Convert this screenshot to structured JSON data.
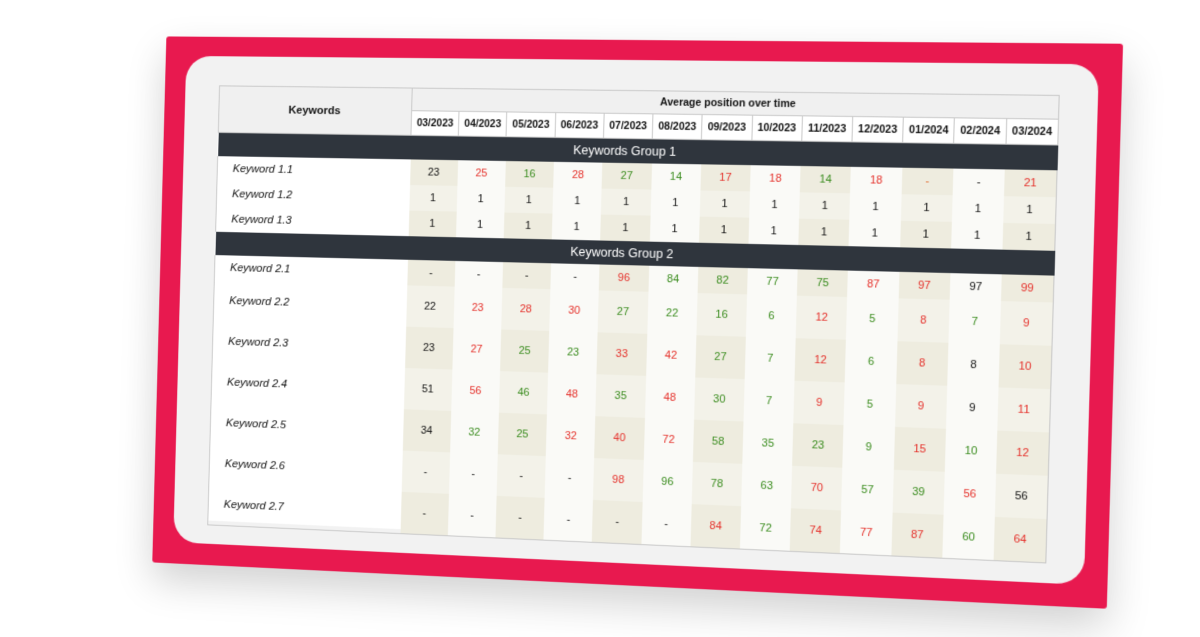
{
  "table": {
    "keywords_header": "Keywords",
    "avg_header": "Average position over time",
    "months": [
      "03/2023",
      "04/2023",
      "05/2023",
      "06/2023",
      "07/2023",
      "08/2023",
      "09/2023",
      "10/2023",
      "11/2023",
      "12/2023",
      "01/2024",
      "02/2024",
      "03/2024"
    ],
    "groups": [
      {
        "name": "Keywords Group 1",
        "rows": [
          {
            "keyword": "Keyword 1.1",
            "values": [
              "23",
              "25",
              "16",
              "28",
              "27",
              "14",
              "17",
              "18",
              "14",
              "18",
              "-",
              "-",
              "21"
            ],
            "colors": [
              "black",
              "red",
              "green",
              "red",
              "green",
              "green",
              "red",
              "red",
              "green",
              "red",
              "orange",
              "black",
              "red"
            ]
          },
          {
            "keyword": "Keyword 1.2",
            "values": [
              "1",
              "1",
              "1",
              "1",
              "1",
              "1",
              "1",
              "1",
              "1",
              "1",
              "1",
              "1",
              "1"
            ],
            "colors": [
              "black",
              "black",
              "black",
              "black",
              "black",
              "black",
              "black",
              "black",
              "black",
              "black",
              "black",
              "black",
              "black"
            ]
          },
          {
            "keyword": "Keyword 1.3",
            "values": [
              "1",
              "1",
              "1",
              "1",
              "1",
              "1",
              "1",
              "1",
              "1",
              "1",
              "1",
              "1",
              "1"
            ],
            "colors": [
              "black",
              "black",
              "black",
              "black",
              "black",
              "black",
              "black",
              "black",
              "black",
              "black",
              "black",
              "black",
              "black"
            ]
          }
        ]
      },
      {
        "name": "Keywords Group 2",
        "rows": [
          {
            "keyword": "Keyword 2.1",
            "values": [
              "-",
              "-",
              "-",
              "-",
              "96",
              "84",
              "82",
              "77",
              "75",
              "87",
              "97",
              "97",
              "99"
            ],
            "colors": [
              "black",
              "black",
              "black",
              "black",
              "red",
              "green",
              "green",
              "green",
              "green",
              "red",
              "red",
              "black",
              "red"
            ]
          },
          {
            "keyword": "Keyword 2.2",
            "values": [
              "22",
              "23",
              "28",
              "30",
              "27",
              "22",
              "16",
              "6",
              "12",
              "5",
              "8",
              "7",
              "9"
            ],
            "colors": [
              "black",
              "red",
              "red",
              "red",
              "green",
              "green",
              "green",
              "green",
              "red",
              "green",
              "red",
              "green",
              "red"
            ]
          },
          {
            "keyword": "Keyword 2.3",
            "values": [
              "23",
              "27",
              "25",
              "23",
              "33",
              "42",
              "27",
              "7",
              "12",
              "6",
              "8",
              "8",
              "10"
            ],
            "colors": [
              "black",
              "red",
              "green",
              "green",
              "red",
              "red",
              "green",
              "green",
              "red",
              "green",
              "red",
              "black",
              "red"
            ]
          },
          {
            "keyword": "Keyword 2.4",
            "values": [
              "51",
              "56",
              "46",
              "48",
              "35",
              "48",
              "30",
              "7",
              "9",
              "5",
              "9",
              "9",
              "11"
            ],
            "colors": [
              "black",
              "red",
              "green",
              "red",
              "green",
              "red",
              "green",
              "green",
              "red",
              "green",
              "red",
              "black",
              "red"
            ]
          },
          {
            "keyword": "Keyword 2.5",
            "values": [
              "34",
              "32",
              "25",
              "32",
              "40",
              "72",
              "58",
              "35",
              "23",
              "9",
              "15",
              "10",
              "12"
            ],
            "colors": [
              "black",
              "green",
              "green",
              "red",
              "red",
              "red",
              "green",
              "green",
              "green",
              "green",
              "red",
              "green",
              "red"
            ]
          },
          {
            "keyword": "Keyword 2.6",
            "values": [
              "-",
              "-",
              "-",
              "-",
              "98",
              "96",
              "78",
              "63",
              "70",
              "57",
              "39",
              "56",
              "56"
            ],
            "colors": [
              "black",
              "black",
              "black",
              "black",
              "red",
              "green",
              "green",
              "green",
              "red",
              "green",
              "green",
              "red",
              "black"
            ]
          },
          {
            "keyword": "Keyword 2.7",
            "values": [
              "-",
              "-",
              "-",
              "-",
              "-",
              "-",
              "84",
              "72",
              "74",
              "77",
              "87",
              "60",
              "64"
            ],
            "colors": [
              "black",
              "black",
              "black",
              "black",
              "black",
              "black",
              "red",
              "green",
              "red",
              "red",
              "red",
              "green",
              "red"
            ]
          }
        ]
      }
    ]
  },
  "colors": {
    "frame": "#e8194f",
    "group_header_bg": "#2f353d",
    "improve": "#3a8c1e",
    "decline": "#e5302a"
  }
}
